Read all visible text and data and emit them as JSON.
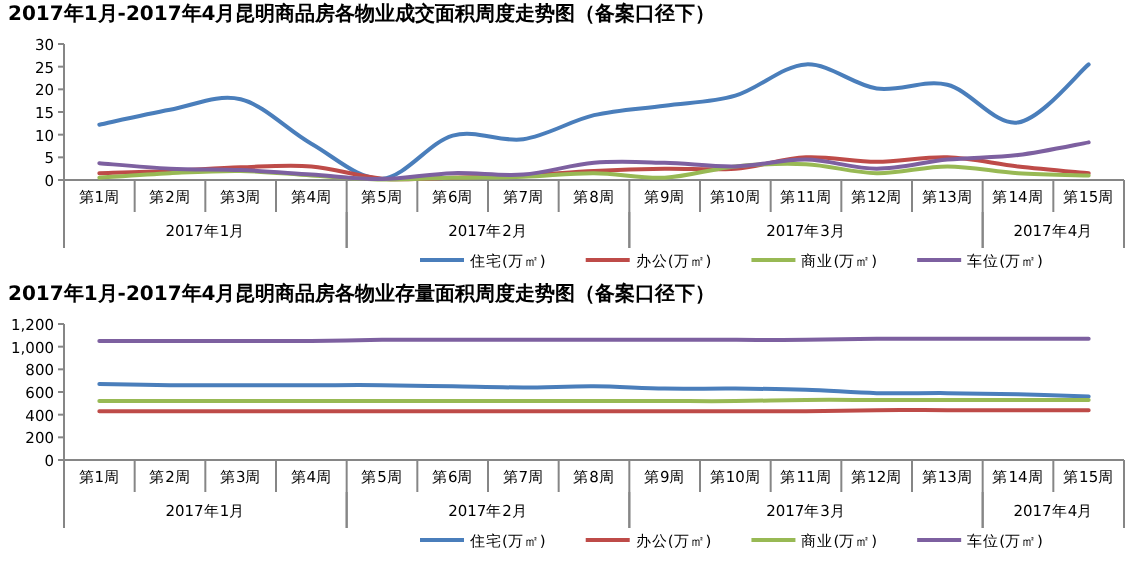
{
  "chart_data": [
    {
      "type": "line",
      "title": "2017年1月-2017年4月昆明商品房各物业成交面积周度走势图（备案口径下）",
      "categories": [
        "第1周",
        "第2周",
        "第3周",
        "第4周",
        "第5周",
        "第6周",
        "第7周",
        "第8周",
        "第9周",
        "第10周",
        "第11周",
        "第12周",
        "第13周",
        "第14周",
        "第15周"
      ],
      "ylim": [
        0,
        30
      ],
      "yticks": [
        0,
        5,
        10,
        15,
        20,
        25,
        30
      ],
      "grid": false,
      "legend": "bottom",
      "marker": "none",
      "annotations": [
        "2017年1月",
        "2017年2月",
        "2017年3月",
        "2017年4月"
      ],
      "series": [
        {
          "name": "住宅(万㎡)",
          "color": "#4a7ebb",
          "values": [
            12.2,
            15.5,
            17.8,
            8,
            0.3,
            9.8,
            9,
            14.3,
            16.4,
            18.6,
            25.5,
            20.2,
            21,
            12.7,
            25.5
          ]
        },
        {
          "name": "办公(万㎡)",
          "color": "#be4b48",
          "values": [
            1.5,
            2,
            2.8,
            3,
            0.3,
            0.5,
            1,
            2,
            2.5,
            2.5,
            5,
            4,
            5,
            3,
            1.5
          ]
        },
        {
          "name": "商业(万㎡)",
          "color": "#98b954",
          "values": [
            0.5,
            1.5,
            2,
            1,
            0.1,
            0.5,
            0.7,
            1.5,
            0.5,
            3,
            3.5,
            1.5,
            3,
            1.5,
            1
          ]
        },
        {
          "name": "车位(万㎡)",
          "color": "#7d60a0",
          "values": [
            3.7,
            2.5,
            2.2,
            1.2,
            0.2,
            1.5,
            1.2,
            3.8,
            3.8,
            3,
            4.5,
            2.5,
            4.5,
            5.5,
            8.3
          ]
        }
      ]
    },
    {
      "type": "line",
      "title": "2017年1月-2017年4月昆明商品房各物业存量面积周度走势图（备案口径下）",
      "categories": [
        "第1周",
        "第2周",
        "第3周",
        "第4周",
        "第5周",
        "第6周",
        "第7周",
        "第8周",
        "第9周",
        "第10周",
        "第11周",
        "第12周",
        "第13周",
        "第14周",
        "第15周"
      ],
      "ylim": [
        0,
        1200
      ],
      "yticks": [
        0,
        200,
        400,
        600,
        800,
        {
          "value": 1000,
          "label": "1,000"
        },
        {
          "value": 1200,
          "label": "1,200"
        }
      ],
      "grid": false,
      "legend": "bottom",
      "marker": "none",
      "annotations": [
        "2017年1月",
        "2017年2月",
        "2017年3月",
        "2017年4月"
      ],
      "series": [
        {
          "name": "住宅(万㎡)",
          "color": "#4a7ebb",
          "values": [
            670,
            660,
            660,
            660,
            660,
            650,
            640,
            650,
            630,
            630,
            620,
            590,
            590,
            580,
            560
          ]
        },
        {
          "name": "办公(万㎡)",
          "color": "#be4b48",
          "values": [
            430,
            430,
            430,
            430,
            430,
            430,
            430,
            430,
            430,
            430,
            430,
            440,
            440,
            440,
            440
          ]
        },
        {
          "name": "商业(万㎡)",
          "color": "#98b954",
          "values": [
            520,
            520,
            520,
            520,
            520,
            520,
            520,
            520,
            520,
            520,
            530,
            530,
            530,
            530,
            530
          ]
        },
        {
          "name": "车位(万㎡)",
          "color": "#7d60a0",
          "values": [
            1050,
            1050,
            1050,
            1050,
            1060,
            1060,
            1060,
            1060,
            1060,
            1060,
            1060,
            1070,
            1070,
            1070,
            1070
          ]
        }
      ]
    }
  ]
}
